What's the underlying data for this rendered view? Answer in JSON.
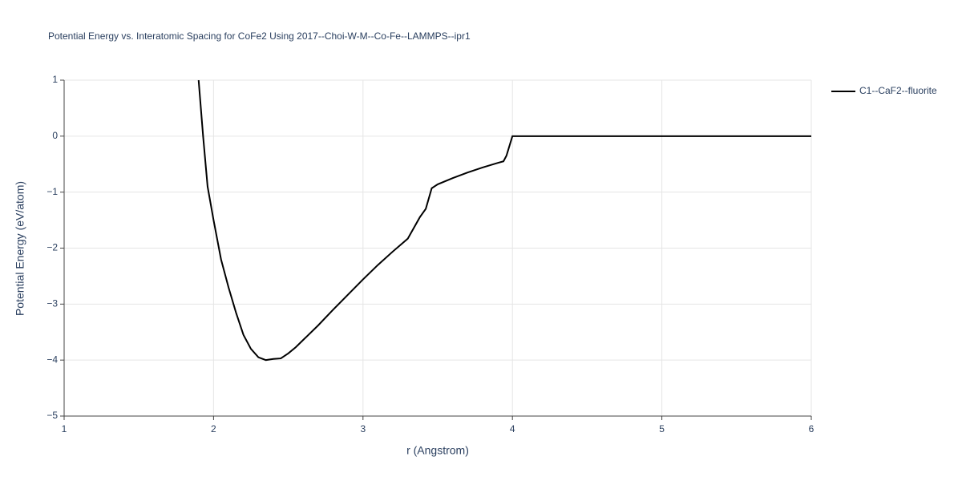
{
  "chart_data": {
    "type": "line",
    "title": "Potential Energy vs. Interatomic Spacing for CoFe2 Using 2017--Choi-W-M--Co-Fe--LAMMPS--ipr1",
    "x_label": "r (Angstrom)",
    "y_label": "Potential Energy (eV/atom)",
    "x": [
      1.9,
      1.93,
      1.96,
      2.0,
      2.05,
      2.1,
      2.15,
      2.2,
      2.25,
      2.3,
      2.35,
      2.4,
      2.45,
      2.5,
      2.55,
      2.6,
      2.7,
      2.8,
      2.9,
      3.0,
      3.1,
      3.2,
      3.3,
      3.38,
      3.42,
      3.46,
      3.5,
      3.6,
      3.7,
      3.8,
      3.9,
      3.94,
      3.96,
      4.0,
      4.5,
      5.0,
      5.5,
      6.0
    ],
    "series": [
      {
        "name": "C1--CaF2--fluorite",
        "color": "#000000",
        "values": [
          1.0,
          0.0,
          -0.9,
          -1.5,
          -2.2,
          -2.7,
          -3.15,
          -3.55,
          -3.8,
          -3.95,
          -4.0,
          -3.98,
          -3.97,
          -3.88,
          -3.77,
          -3.64,
          -3.38,
          -3.1,
          -2.83,
          -2.56,
          -2.3,
          -2.06,
          -1.83,
          -1.45,
          -1.3,
          -0.93,
          -0.86,
          -0.75,
          -0.65,
          -0.56,
          -0.48,
          -0.45,
          -0.35,
          0.0,
          0.0,
          0.0,
          0.0,
          0.0
        ]
      }
    ],
    "xlim": [
      1,
      6
    ],
    "ylim": [
      -5,
      1
    ],
    "xticks": [
      1,
      2,
      3,
      4,
      5,
      6
    ],
    "yticks": [
      {
        "value": -5,
        "label": "−5"
      },
      {
        "value": -4,
        "label": "−4"
      },
      {
        "value": -3,
        "label": "−3"
      },
      {
        "value": -2,
        "label": "−2"
      },
      {
        "value": -1,
        "label": "−1"
      },
      0,
      1
    ],
    "grid": true
  }
}
